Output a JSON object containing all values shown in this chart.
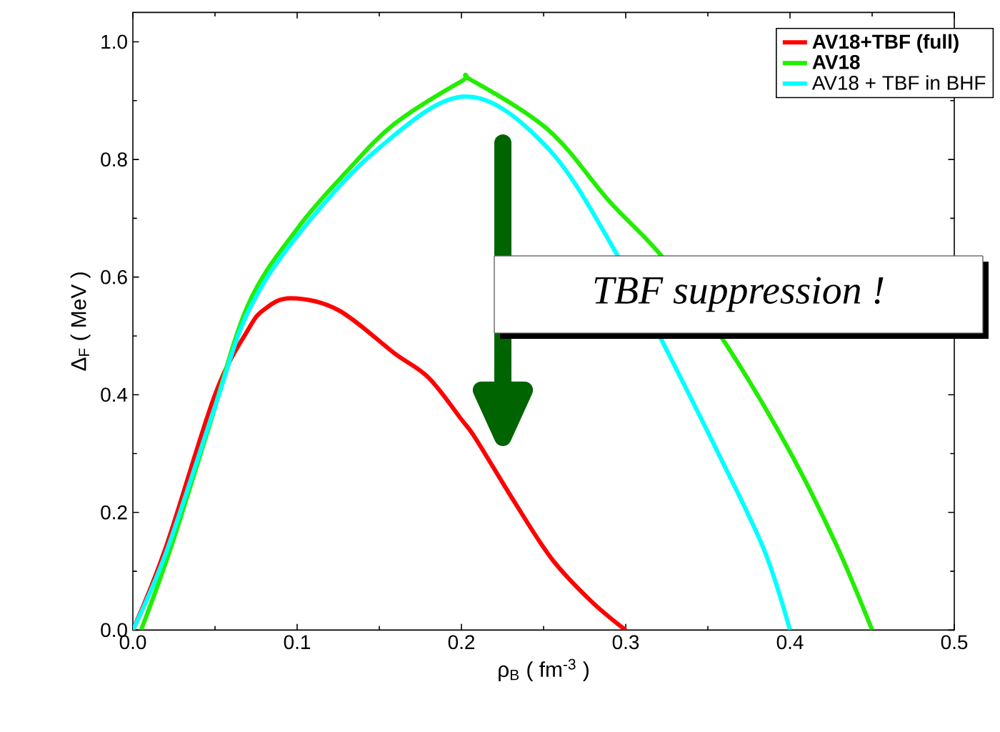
{
  "chart_data": {
    "type": "line",
    "xlabel": "ρ$_{B}$  ( fm$^{-3}$ )",
    "ylabel": "Δ$_{F}$  ( MeV )",
    "xlim": [
      0,
      0.5
    ],
    "ylim": [
      0,
      1.05
    ],
    "xticks": [
      {
        "value": 0,
        "label": "0.0"
      },
      0.1,
      0.2,
      0.3,
      0.4,
      0.5
    ],
    "yticks": [
      {
        "value": 0,
        "label": "0.0"
      },
      0.2,
      0.4,
      0.6,
      0.8,
      {
        "value": 1,
        "label": "1.0"
      }
    ],
    "legend": "top right",
    "grid": false,
    "marker": "none",
    "line_style": "solid",
    "annotations": [
      "TBF suppression !"
    ],
    "series": [
      {
        "name": "**AV18+TBF (full)**",
        "color": "#ff0000",
        "x": [
          0,
          0.02,
          0.05,
          0.07,
          0.08,
          0.096,
          0.125,
          0.159,
          0.18,
          0.2,
          0.209,
          0.232,
          0.255,
          0.279,
          0.3
        ],
        "values": [
          0,
          0.14,
          0.4,
          0.51,
          0.545,
          0.564,
          0.544,
          0.471,
          0.429,
          0.358,
          0.324,
          0.219,
          0.121,
          0.049,
          0
        ]
      },
      {
        "name": "**AV18**",
        "color": "#22ee00",
        "x": [
          0.005,
          0.023,
          0.046,
          0.07,
          0.1,
          0.13,
          0.159,
          0.2,
          0.206,
          0.253,
          0.29,
          0.323,
          0.361,
          0.399,
          0.428,
          0.45
        ],
        "values": [
          0,
          0.139,
          0.342,
          0.552,
          0.682,
          0.779,
          0.86,
          0.933,
          0.935,
          0.85,
          0.729,
          0.632,
          0.486,
          0.308,
          0.146,
          0
        ]
      },
      {
        "name": "AV18 + TBF in BHF",
        "color": "#00ffff",
        "x": [
          0,
          0.02,
          0.05,
          0.07,
          0.1,
          0.15,
          0.203,
          0.253,
          0.296,
          0.326,
          0.355,
          0.384,
          0.4
        ],
        "values": [
          0,
          0.13,
          0.38,
          0.54,
          0.67,
          0.82,
          0.907,
          0.818,
          0.632,
          0.47,
          0.308,
          0.138,
          0
        ]
      }
    ]
  }
}
